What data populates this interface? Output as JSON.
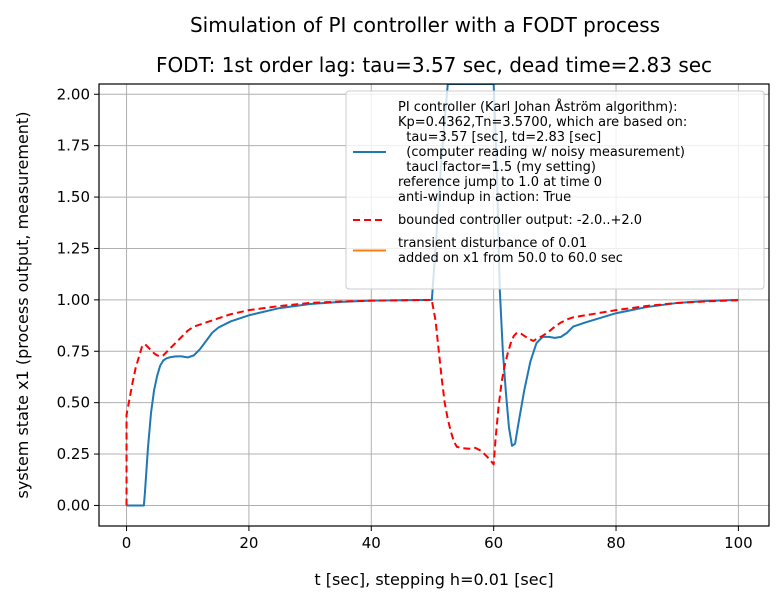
{
  "chart_data": {
    "type": "line",
    "title": "Simulation of PI controller with a FODT process",
    "subtitle": "FODT: 1st order lag: tau=3.57 sec, dead time=2.83 sec",
    "xlabel": "t [sec], stepping h=0.01 [sec]",
    "ylabel": "system state x1 (process output, measurement)",
    "xlim": [
      -4.5,
      105
    ],
    "ylim": [
      -0.1,
      2.05
    ],
    "xticks": [
      0,
      20,
      40,
      60,
      80,
      100
    ],
    "yticks": [
      0.0,
      0.25,
      0.5,
      0.75,
      1.0,
      1.25,
      1.5,
      1.75,
      2.0
    ],
    "xtick_labels": [
      "0",
      "20",
      "40",
      "60",
      "80",
      "100"
    ],
    "ytick_labels": [
      "0.00",
      "0.25",
      "0.50",
      "0.75",
      "1.00",
      "1.25",
      "1.50",
      "1.75",
      "2.00"
    ],
    "grid": true,
    "legend_position": "top-right",
    "series": [
      {
        "name": "PI controller (Karl Johan Åström algorithm):\nKp=0.4362,Tn=3.5700, which are based on:\n  tau=3.57 [sec], td=2.83 [sec]\n  (computer reading w/ noisy measurement)\n  taucl factor=1.5 (my setting)\nreference jump to 1.0 at time 0\nanti-windup in action: True",
        "color": "#1f77b4",
        "dash": "solid",
        "x": [
          0,
          2.83,
          3.0,
          3.5,
          4.0,
          4.5,
          5.0,
          5.5,
          6.0,
          6.5,
          7.0,
          8.0,
          9.0,
          10.0,
          11.0,
          12.0,
          13.0,
          14.0,
          15.0,
          17.0,
          20.0,
          25.0,
          30.0,
          35.0,
          40.0,
          45.0,
          49.9,
          50.5,
          51.5,
          52.5,
          53.5,
          54.5,
          55.5,
          56.5,
          57.5,
          58.5,
          59.5,
          60.0,
          60.5,
          61.0,
          61.5,
          62.0,
          62.5,
          63.0,
          63.5,
          64.0,
          65.0,
          66.0,
          67.0,
          68.0,
          69.0,
          70.0,
          71.0,
          72.0,
          73.0,
          75.0,
          80.0,
          85.0,
          90.0,
          95.0,
          100.0
        ],
        "y": [
          0,
          0,
          0.06,
          0.28,
          0.45,
          0.56,
          0.63,
          0.68,
          0.705,
          0.715,
          0.72,
          0.725,
          0.725,
          0.72,
          0.73,
          0.76,
          0.8,
          0.84,
          0.865,
          0.895,
          0.925,
          0.96,
          0.98,
          0.99,
          0.996,
          0.998,
          1.0,
          1.25,
          1.7,
          2.05,
          2.05,
          2.05,
          2.05,
          2.05,
          2.05,
          2.05,
          2.05,
          2.05,
          1.65,
          1.05,
          0.75,
          0.55,
          0.38,
          0.29,
          0.3,
          0.39,
          0.56,
          0.7,
          0.79,
          0.82,
          0.82,
          0.815,
          0.82,
          0.84,
          0.87,
          0.89,
          0.935,
          0.965,
          0.985,
          0.995,
          1.0
        ]
      },
      {
        "name": "bounded controller output: -2.0..+2.0",
        "color": "#ff0000",
        "dash": "dashed",
        "x": [
          0,
          0,
          0.5,
          1.0,
          1.5,
          2.0,
          2.5,
          3.0,
          3.5,
          4.0,
          4.5,
          5.0,
          5.5,
          6.0,
          6.5,
          7.0,
          8.0,
          9.0,
          10.0,
          11.0,
          12.0,
          13.0,
          14.0,
          15.0,
          17.0,
          20.0,
          25.0,
          30.0,
          35.0,
          40.0,
          45.0,
          49.9,
          50.0,
          50.5,
          51.0,
          51.5,
          52.0,
          52.5,
          53.0,
          53.5,
          54.0,
          55.0,
          56.0,
          57.0,
          58.0,
          59.0,
          60.0,
          60.3,
          60.8,
          61.3,
          61.8,
          62.3,
          62.8,
          63.3,
          63.8,
          64.5,
          65.5,
          66.5,
          67.0,
          68.0,
          69.0,
          70.0,
          71.0,
          72.0,
          73.0,
          75.0,
          80.0,
          85.0,
          90.0,
          95.0,
          100.0
        ],
        "y": [
          0,
          0.44,
          0.52,
          0.6,
          0.67,
          0.72,
          0.77,
          0.785,
          0.77,
          0.755,
          0.74,
          0.73,
          0.725,
          0.73,
          0.745,
          0.76,
          0.79,
          0.82,
          0.85,
          0.87,
          0.88,
          0.89,
          0.9,
          0.91,
          0.93,
          0.95,
          0.97,
          0.985,
          0.992,
          0.996,
          0.998,
          1.0,
          0.98,
          0.9,
          0.76,
          0.62,
          0.5,
          0.42,
          0.36,
          0.31,
          0.285,
          0.278,
          0.276,
          0.28,
          0.265,
          0.235,
          0.2,
          0.32,
          0.48,
          0.6,
          0.68,
          0.74,
          0.79,
          0.825,
          0.84,
          0.835,
          0.815,
          0.8,
          0.81,
          0.825,
          0.845,
          0.87,
          0.89,
          0.905,
          0.915,
          0.925,
          0.95,
          0.97,
          0.985,
          0.993,
          0.998
        ]
      },
      {
        "name": "transient disturbance of 0.01\nadded on x1 from 50.0 to 60.0 sec",
        "color": "#ff7f0e",
        "dash": "solid",
        "x": [],
        "y": []
      }
    ]
  }
}
